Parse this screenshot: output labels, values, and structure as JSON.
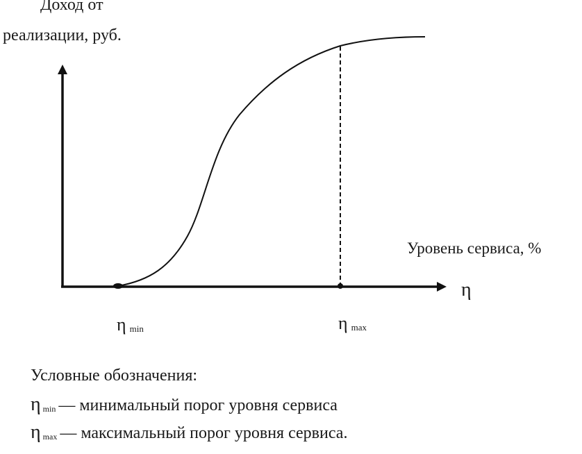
{
  "diagram": {
    "y_axis_label_line1": "Доход от",
    "y_axis_label_line2": "реализации, руб.",
    "x_axis_label": "Уровень сервиса, %",
    "x_axis_symbol": "η",
    "eta_min": {
      "symbol": "η",
      "subscript": "min"
    },
    "eta_max": {
      "symbol": "η",
      "subscript": "max"
    },
    "curve_shape": "s-curve",
    "max_marker_style": "dashed vertical line"
  },
  "legend": {
    "title": "Условные обозначения:",
    "items": [
      {
        "symbol": "η",
        "subscript": "min",
        "dash": "—",
        "text": "минимальный порог уровня сервиса"
      },
      {
        "symbol": "η",
        "subscript": "max",
        "dash": "—",
        "text": "максимальный порог уровня сервиса."
      }
    ]
  }
}
